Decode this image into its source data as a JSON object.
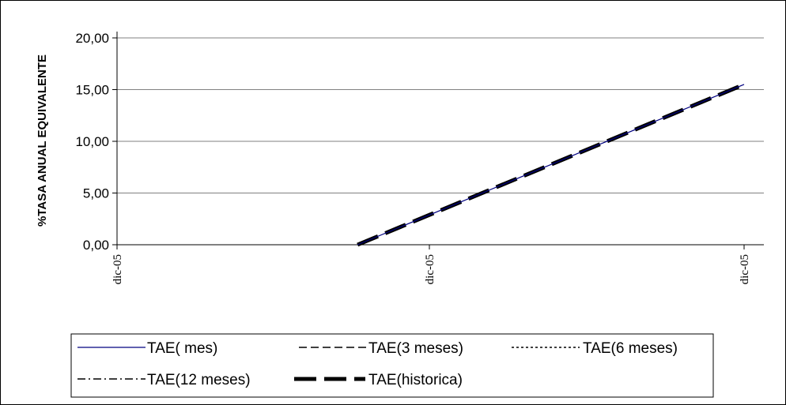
{
  "chart_data": {
    "type": "line",
    "ylabel": "%TASA ANUAL EQUIVALENTE",
    "xlabel": "",
    "ylim": [
      0,
      20
    ],
    "y_ticks": [
      "0,00",
      "5,00",
      "10,00",
      "15,00",
      "20,00"
    ],
    "y_tick_values": [
      0,
      5,
      10,
      15,
      20
    ],
    "x_categories": [
      "dic-05",
      "dic-05",
      "dic-05"
    ],
    "grid": "horizontal",
    "legend_position": "bottom",
    "series": [
      {
        "name": "TAE( mes)",
        "style": "solid-thin",
        "color": "#000080",
        "x": [
          1.77,
          3.0
        ],
        "y": [
          0,
          15.5
        ]
      },
      {
        "name": "TAE(3 meses)",
        "style": "dashed",
        "color": "#000000",
        "x": [],
        "y": []
      },
      {
        "name": "TAE(6 meses)",
        "style": "dotted",
        "color": "#000000",
        "x": [],
        "y": []
      },
      {
        "name": "TAE(12 meses)",
        "style": "dashdot",
        "color": "#000000",
        "x": [],
        "y": []
      },
      {
        "name": "TAE(historica)",
        "style": "dashed-thick",
        "color": "#000000",
        "x": [
          1.77,
          3.0
        ],
        "y": [
          0,
          15.5
        ]
      }
    ]
  }
}
